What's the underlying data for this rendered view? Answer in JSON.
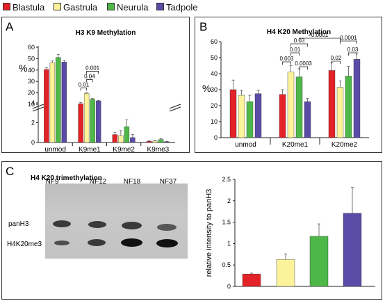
{
  "legend": {
    "items": [
      {
        "name": "Blastula",
        "color": "#e32227"
      },
      {
        "name": "Gastrula",
        "color": "#fbf29a"
      },
      {
        "name": "Neurula",
        "color": "#4db848"
      },
      {
        "name": "Tadpole",
        "color": "#5a4ba7"
      }
    ]
  },
  "panels": {
    "A": {
      "letter": "A"
    },
    "B": {
      "letter": "B"
    },
    "C": {
      "letter": "C"
    }
  },
  "gel": {
    "title": "H4 K20 trimethylation",
    "lanes": [
      "NF9",
      "NF12",
      "NF18",
      "NF37"
    ],
    "rows": [
      "panH3",
      "H4K20me3"
    ]
  },
  "chart_data": [
    {
      "type": "bar",
      "title": "H3 K9 Methylation",
      "ylabel": "%",
      "categories": [
        "unmod",
        "K9me1",
        "K9me2",
        "K9me3"
      ],
      "broken_axis": true,
      "y_ticks_lower": [
        0,
        2,
        4
      ],
      "y_ticks_upper": [
        10,
        20,
        30,
        40,
        50,
        60
      ],
      "series": [
        {
          "name": "Blastula",
          "values": [
            40.5,
            10.5,
            0.8,
            0.12
          ],
          "errors": [
            1.5,
            1.0,
            0.2,
            0.05
          ]
        },
        {
          "name": "Gastrula",
          "values": [
            46.5,
            19.5,
            0.7,
            0.15
          ],
          "errors": [
            1.5,
            0.7,
            0.5,
            0.05
          ]
        },
        {
          "name": "Neurula",
          "values": [
            51.0,
            14.5,
            1.6,
            0.3
          ],
          "errors": [
            2.5,
            0.8,
            0.7,
            0.1
          ]
        },
        {
          "name": "Tadpole",
          "values": [
            47.0,
            13.0,
            0.5,
            0.08
          ],
          "errors": [
            1.5,
            0.5,
            0.3,
            0.03
          ]
        }
      ],
      "annotations": [
        {
          "label": "0.01",
          "from": "Blastula",
          "to": "Gastrula",
          "category": "K9me1"
        },
        {
          "label": "0.04",
          "from": "Gastrula",
          "to": "Neurula",
          "category": "K9me1"
        },
        {
          "label": "0.001",
          "from": "Gastrula",
          "to": "Tadpole",
          "category": "K9me1"
        }
      ]
    },
    {
      "type": "bar",
      "title": "H4 K20 Methylation",
      "ylabel": "%",
      "categories": [
        "unmod",
        "K20me1",
        "K20me2"
      ],
      "ylim": [
        0,
        60
      ],
      "y_ticks": [
        0,
        10,
        20,
        30,
        40,
        50,
        60
      ],
      "series": [
        {
          "name": "Blastula",
          "values": [
            30,
            27,
            42
          ],
          "errors": [
            6,
            3,
            5
          ]
        },
        {
          "name": "Gastrula",
          "values": [
            26.5,
            41,
            31.5
          ],
          "errors": [
            3,
            4,
            4
          ]
        },
        {
          "name": "Neurula",
          "values": [
            22.5,
            38,
            38.5
          ],
          "errors": [
            4,
            5,
            6
          ]
        },
        {
          "name": "Tadpole",
          "values": [
            27.5,
            22.5,
            49
          ],
          "errors": [
            2,
            2,
            4
          ]
        }
      ],
      "annotations": [
        {
          "label": "0.003",
          "from": "Blastula",
          "to": "Gastrula",
          "category": "K20me1"
        },
        {
          "label": "0.01",
          "from": "Gastrula",
          "to": "Neurula",
          "category": "K20me1"
        },
        {
          "label": "0.0003",
          "from": "Neurula",
          "to": "Tadpole",
          "category": "K20me1"
        },
        {
          "label": "0.03",
          "from": "Gastrula",
          "to": "Tadpole",
          "category": "K20me1"
        },
        {
          "label": "0.0001",
          "from": "Gastrula",
          "to": "Tadpole",
          "category": "K20me1/K20me2"
        },
        {
          "label": "0.02",
          "from": "Blastula",
          "to": "Gastrula",
          "category": "K20me2"
        },
        {
          "label": "0.03",
          "from": "Neurula",
          "to": "Tadpole",
          "category": "K20me2"
        },
        {
          "label": "0.0001",
          "from": "Gastrula",
          "to": "Tadpole",
          "category": "K20me2"
        }
      ]
    },
    {
      "type": "bar",
      "title": "",
      "ylabel": "relative intensity to panH3",
      "categories": [
        "Blastula",
        "Gastrula",
        "Neurula",
        "Tadpole"
      ],
      "ylim": [
        0,
        2.5
      ],
      "y_ticks": [
        "0",
        "0.5",
        "1",
        "1.5",
        "2",
        "2.5"
      ],
      "values": [
        0.29,
        0.63,
        1.17,
        1.71
      ],
      "errors": [
        0.02,
        0.13,
        0.29,
        0.6
      ]
    }
  ]
}
